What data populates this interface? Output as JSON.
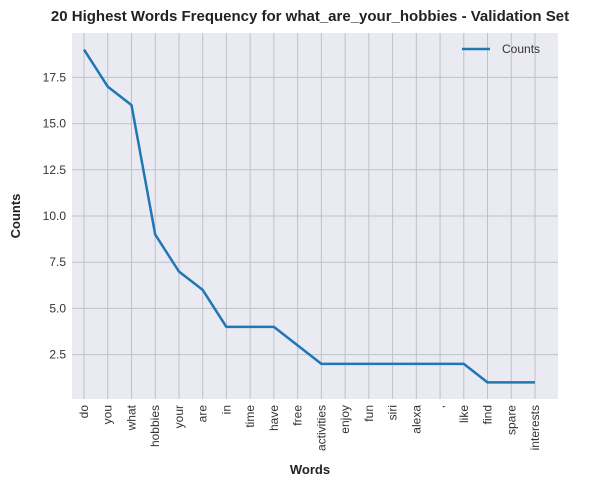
{
  "chart_data": {
    "type": "line",
    "title": "20 Highest Words Frequency for what_are_your_hobbies - Validation Set",
    "xlabel": "Words",
    "ylabel": "Counts",
    "categories": [
      "do",
      "you",
      "what",
      "hobbies",
      "your",
      "are",
      "in",
      "time",
      "have",
      "free",
      "activities",
      "enjoy",
      "fun",
      "siri",
      "alexa",
      ",",
      "like",
      "find",
      "spare",
      "interests"
    ],
    "series": [
      {
        "name": "Counts",
        "values": [
          19,
          17,
          16,
          9,
          7,
          6,
          4,
          4,
          4,
          3,
          2,
          2,
          2,
          2,
          2,
          2,
          2,
          1,
          1,
          1
        ]
      }
    ],
    "ylim": [
      0.1,
      19.9
    ],
    "yticks": [
      2.5,
      5.0,
      7.5,
      10.0,
      12.5,
      15.0,
      17.5
    ],
    "ytick_labels": [
      "2.5",
      "5.0",
      "7.5",
      "10.0",
      "12.5",
      "15.0",
      "17.5"
    ],
    "grid": true,
    "legend": "top-right"
  },
  "colors": {
    "background": "#eaeaf2",
    "grid": "#c0c0c8",
    "line": "#1f77b4"
  }
}
